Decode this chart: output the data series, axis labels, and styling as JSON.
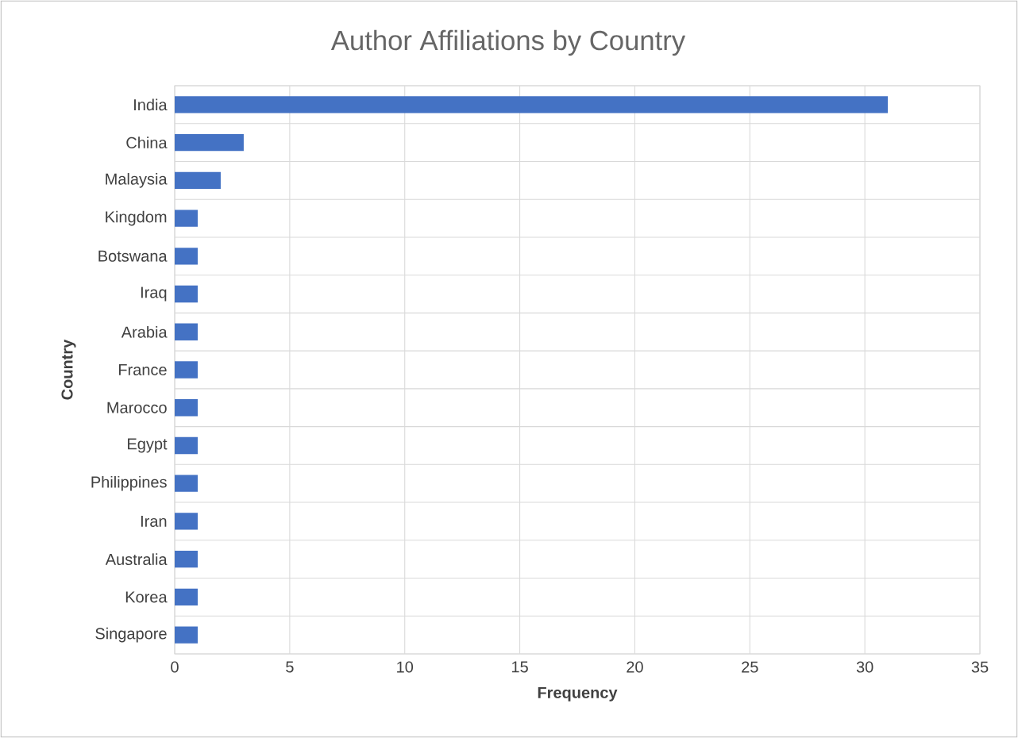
{
  "chart_data": {
    "type": "bar",
    "orientation": "horizontal",
    "title": "Author Affiliations by Country",
    "xlabel": "Frequency",
    "ylabel": "Country",
    "categories": [
      "India",
      "China",
      "Malaysia",
      "Kingdom",
      "Botswana",
      "Iraq",
      "Arabia",
      "France",
      "Marocco",
      "Egypt",
      "Philippines",
      "Iran",
      "Australia",
      "Korea",
      "Singapore"
    ],
    "values": [
      31,
      3,
      2,
      1,
      1,
      1,
      1,
      1,
      1,
      1,
      1,
      1,
      1,
      1,
      1
    ],
    "color": "#4472c4",
    "xlim": [
      0,
      35
    ],
    "xticks": [
      0,
      5,
      10,
      15,
      20,
      25,
      30,
      35
    ],
    "grid": true
  }
}
